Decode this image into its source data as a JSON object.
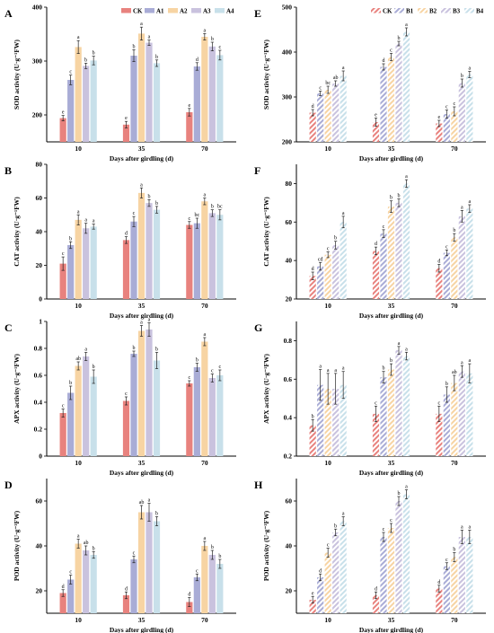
{
  "colors": [
    "#e8827e",
    "#a9acd6",
    "#f7d4a3",
    "#c9c2de",
    "#c8e0ea"
  ],
  "chart_data": [
    {
      "type": "bar",
      "panel": "A",
      "hatched": false,
      "categories": [
        "10",
        "35",
        "70"
      ],
      "ylim": [
        150,
        400
      ],
      "yticks": [
        200,
        300,
        400
      ],
      "xlabel": "Days after girdling (d)",
      "ylabel": "SOD activity (U·g⁻¹FW)",
      "series": [
        {
          "name": "CK",
          "values": [
            194,
            182,
            205
          ],
          "errors": [
            5,
            6,
            7
          ],
          "letters": [
            "e",
            "e",
            "e"
          ]
        },
        {
          "name": "A1",
          "values": [
            265,
            310,
            290
          ],
          "errors": [
            9,
            11,
            7
          ],
          "letters": [
            "c",
            "b",
            "d"
          ]
        },
        {
          "name": "A2",
          "values": [
            326,
            351,
            345
          ],
          "errors": [
            12,
            12,
            6
          ],
          "letters": [
            "a",
            "a",
            "a"
          ]
        },
        {
          "name": "A3",
          "values": [
            291,
            334,
            327
          ],
          "errors": [
            5,
            5,
            8
          ],
          "letters": [
            "b",
            "a",
            "b"
          ]
        },
        {
          "name": "A4",
          "values": [
            301,
            296,
            311
          ],
          "errors": [
            8,
            6,
            9
          ],
          "letters": [
            "b",
            "b",
            "c"
          ]
        }
      ]
    },
    {
      "type": "bar",
      "panel": "E",
      "hatched": true,
      "categories": [
        "10",
        "35",
        "70"
      ],
      "ylim": [
        200,
        500
      ],
      "yticks": [
        200,
        300,
        400,
        500
      ],
      "xlabel": "Days after girdling (d)",
      "ylabel": "SOD activity (U·g⁻¹FW)",
      "series": [
        {
          "name": "CK",
          "values": [
            265,
            244,
            241
          ],
          "errors": [
            7,
            9,
            7
          ],
          "letters": [
            "d",
            "e",
            "e"
          ]
        },
        {
          "name": "B1",
          "values": [
            308,
            367,
            262
          ],
          "errors": [
            5,
            7,
            9
          ],
          "letters": [
            "c",
            "d",
            "c"
          ]
        },
        {
          "name": "B2",
          "values": [
            316,
            389,
            268
          ],
          "errors": [
            8,
            8,
            10
          ],
          "letters": [
            "bc",
            "c",
            "c"
          ]
        },
        {
          "name": "B3",
          "values": [
            330,
            419,
            331
          ],
          "errors": [
            6,
            5,
            9
          ],
          "letters": [
            "ab",
            "b",
            "b"
          ]
        },
        {
          "name": "B4",
          "values": [
            347,
            445,
            350
          ],
          "errors": [
            11,
            9,
            7
          ],
          "letters": [
            "a",
            "a",
            "a"
          ]
        }
      ]
    },
    {
      "type": "bar",
      "panel": "B",
      "hatched": false,
      "categories": [
        "10",
        "35",
        "70"
      ],
      "ylim": [
        0,
        80
      ],
      "yticks": [
        0,
        20,
        40,
        60,
        80
      ],
      "xlabel": "Days after girdling (d)",
      "ylabel": "CAT activity (U·g⁻¹FW)",
      "series": [
        {
          "name": "CK",
          "values": [
            21,
            35,
            44
          ],
          "errors": [
            4,
            2,
            2
          ],
          "letters": [
            "c",
            "d",
            "c"
          ]
        },
        {
          "name": "A1",
          "values": [
            32,
            46,
            45
          ],
          "errors": [
            2,
            3,
            3
          ],
          "letters": [
            "b",
            "c",
            "bc"
          ]
        },
        {
          "name": "A2",
          "values": [
            47,
            63,
            58
          ],
          "errors": [
            3,
            3,
            2
          ],
          "letters": [
            "a",
            "a",
            "a"
          ]
        },
        {
          "name": "A3",
          "values": [
            42,
            57,
            51
          ],
          "errors": [
            3,
            2,
            2
          ],
          "letters": [
            "a",
            "b",
            "b"
          ]
        },
        {
          "name": "A4",
          "values": [
            43,
            53,
            50
          ],
          "errors": [
            1.5,
            2,
            3
          ],
          "letters": [
            "a",
            "b",
            "bc"
          ]
        }
      ]
    },
    {
      "type": "bar",
      "panel": "F",
      "hatched": true,
      "categories": [
        "10",
        "35",
        "70"
      ],
      "ylim": [
        20,
        90
      ],
      "yticks": [
        20,
        40,
        60,
        80
      ],
      "xlabel": "Days after girdling (d)",
      "ylabel": "CAT activity (U·g⁻¹FW)",
      "series": [
        {
          "name": "CK",
          "values": [
            32,
            45,
            36
          ],
          "errors": [
            2,
            2,
            2
          ],
          "letters": [
            "d",
            "d",
            "d"
          ]
        },
        {
          "name": "B1",
          "values": [
            37,
            54,
            44
          ],
          "errors": [
            2,
            2,
            1.5
          ],
          "letters": [
            "cd",
            "c",
            "c"
          ]
        },
        {
          "name": "B2",
          "values": [
            43,
            68,
            52
          ],
          "errors": [
            1.5,
            3,
            2
          ],
          "letters": [
            "c",
            "b",
            "b"
          ]
        },
        {
          "name": "B3",
          "values": [
            48,
            70,
            63
          ],
          "errors": [
            2,
            2,
            3
          ],
          "letters": [
            "b",
            "b",
            "a"
          ]
        },
        {
          "name": "B4",
          "values": [
            60,
            80,
            67
          ],
          "errors": [
            3,
            2,
            2
          ],
          "letters": [
            "a",
            "a",
            "a"
          ]
        }
      ]
    },
    {
      "type": "bar",
      "panel": "C",
      "hatched": false,
      "categories": [
        "10",
        "35",
        "70"
      ],
      "ylim": [
        0,
        1.0
      ],
      "yticks": [
        0.0,
        0.2,
        0.4,
        0.6,
        0.8,
        1.0
      ],
      "xlabel": "Days after girdling (d)",
      "ylabel": "APX activity (U·g⁻¹FW)",
      "series": [
        {
          "name": "CK",
          "values": [
            0.32,
            0.41,
            0.54
          ],
          "errors": [
            0.03,
            0.03,
            0.02
          ],
          "letters": [
            "c",
            "c",
            "c"
          ]
        },
        {
          "name": "A1",
          "values": [
            0.47,
            0.76,
            0.66
          ],
          "errors": [
            0.05,
            0.02,
            0.03
          ],
          "letters": [
            "b",
            "b",
            "b"
          ]
        },
        {
          "name": "A2",
          "values": [
            0.67,
            0.93,
            0.85
          ],
          "errors": [
            0.03,
            0.04,
            0.03
          ],
          "letters": [
            "ab",
            "a",
            "a"
          ]
        },
        {
          "name": "A3",
          "values": [
            0.74,
            0.94,
            0.58
          ],
          "errors": [
            0.03,
            0.05,
            0.03
          ],
          "letters": [
            "a",
            "a",
            "c"
          ]
        },
        {
          "name": "A4",
          "values": [
            0.59,
            0.71,
            0.6
          ],
          "errors": [
            0.05,
            0.06,
            0.04
          ],
          "letters": [
            "b",
            "b",
            "c"
          ]
        }
      ]
    },
    {
      "type": "bar",
      "panel": "G",
      "hatched": true,
      "categories": [
        "10",
        "35",
        "70"
      ],
      "ylim": [
        0.2,
        0.9
      ],
      "yticks": [
        0.2,
        0.4,
        0.6,
        0.8
      ],
      "xlabel": "Days after girdling (d)",
      "ylabel": "APX activity (U·g⁻¹FW)",
      "series": [
        {
          "name": "CK",
          "values": [
            0.36,
            0.42,
            0.42
          ],
          "errors": [
            0.03,
            0.04,
            0.04
          ],
          "letters": [
            "b",
            "c",
            "c"
          ]
        },
        {
          "name": "B1",
          "values": [
            0.57,
            0.61,
            0.52
          ],
          "errors": [
            0.08,
            0.03,
            0.04
          ],
          "letters": [
            "a",
            "b",
            "b"
          ]
        },
        {
          "name": "B2",
          "values": [
            0.55,
            0.65,
            0.58
          ],
          "errors": [
            0.08,
            0.03,
            0.04
          ],
          "letters": [
            "a",
            "b",
            "ab"
          ]
        },
        {
          "name": "B3",
          "values": [
            0.55,
            0.75,
            0.64
          ],
          "errors": [
            0.08,
            0.02,
            0.03
          ],
          "letters": [
            "a",
            "a",
            "a"
          ]
        },
        {
          "name": "B4",
          "values": [
            0.57,
            0.72,
            0.63
          ],
          "errors": [
            0.07,
            0.02,
            0.05
          ],
          "letters": [
            "a",
            "a",
            "a"
          ]
        }
      ]
    },
    {
      "type": "bar",
      "panel": "D",
      "hatched": false,
      "categories": [
        "10",
        "35",
        "70"
      ],
      "ylim": [
        10,
        70
      ],
      "yticks": [
        20,
        40,
        60
      ],
      "xlabel": "Days after girdling (d)",
      "ylabel": "POD activity (U·g⁻¹FW)",
      "series": [
        {
          "name": "CK",
          "values": [
            19,
            18,
            15
          ],
          "errors": [
            1.5,
            1.5,
            2
          ],
          "letters": [
            "d",
            "d",
            "d"
          ]
        },
        {
          "name": "A1",
          "values": [
            25,
            34,
            26
          ],
          "errors": [
            2,
            1.5,
            1.5
          ],
          "letters": [
            "c",
            "c",
            "c"
          ]
        },
        {
          "name": "A2",
          "values": [
            41,
            55,
            40
          ],
          "errors": [
            2,
            3,
            2
          ],
          "letters": [
            "a",
            "ab",
            "a"
          ]
        },
        {
          "name": "A3",
          "values": [
            38,
            55,
            36
          ],
          "errors": [
            2,
            4,
            2
          ],
          "letters": [
            "ab",
            "a",
            "b"
          ]
        },
        {
          "name": "A4",
          "values": [
            36,
            51,
            32
          ],
          "errors": [
            1.5,
            2,
            2
          ],
          "letters": [
            "b",
            "b",
            "b"
          ]
        }
      ]
    },
    {
      "type": "bar",
      "panel": "H",
      "hatched": true,
      "categories": [
        "10",
        "35",
        "70"
      ],
      "ylim": [
        10,
        70
      ],
      "yticks": [
        20,
        40,
        60
      ],
      "xlabel": "Days after girdling (d)",
      "ylabel": "POD activity (U·g⁻¹FW)",
      "series": [
        {
          "name": "CK",
          "values": [
            16,
            18,
            21
          ],
          "errors": [
            1.5,
            1.5,
            1.5
          ],
          "letters": [
            "e",
            "d",
            "d"
          ]
        },
        {
          "name": "B1",
          "values": [
            26,
            44,
            31
          ],
          "errors": [
            1.5,
            2,
            1.5
          ],
          "letters": [
            "d",
            "c",
            "c"
          ]
        },
        {
          "name": "B2",
          "values": [
            37,
            48,
            35
          ],
          "errors": [
            2,
            2,
            2
          ],
          "letters": [
            "c",
            "c",
            "b"
          ]
        },
        {
          "name": "B3",
          "values": [
            46,
            60,
            44
          ],
          "errors": [
            1.5,
            2,
            3
          ],
          "letters": [
            "b",
            "b",
            "a"
          ]
        },
        {
          "name": "B4",
          "values": [
            51,
            63,
            44
          ],
          "errors": [
            2,
            2,
            3
          ],
          "letters": [
            "a",
            "a",
            "a"
          ]
        }
      ]
    }
  ]
}
